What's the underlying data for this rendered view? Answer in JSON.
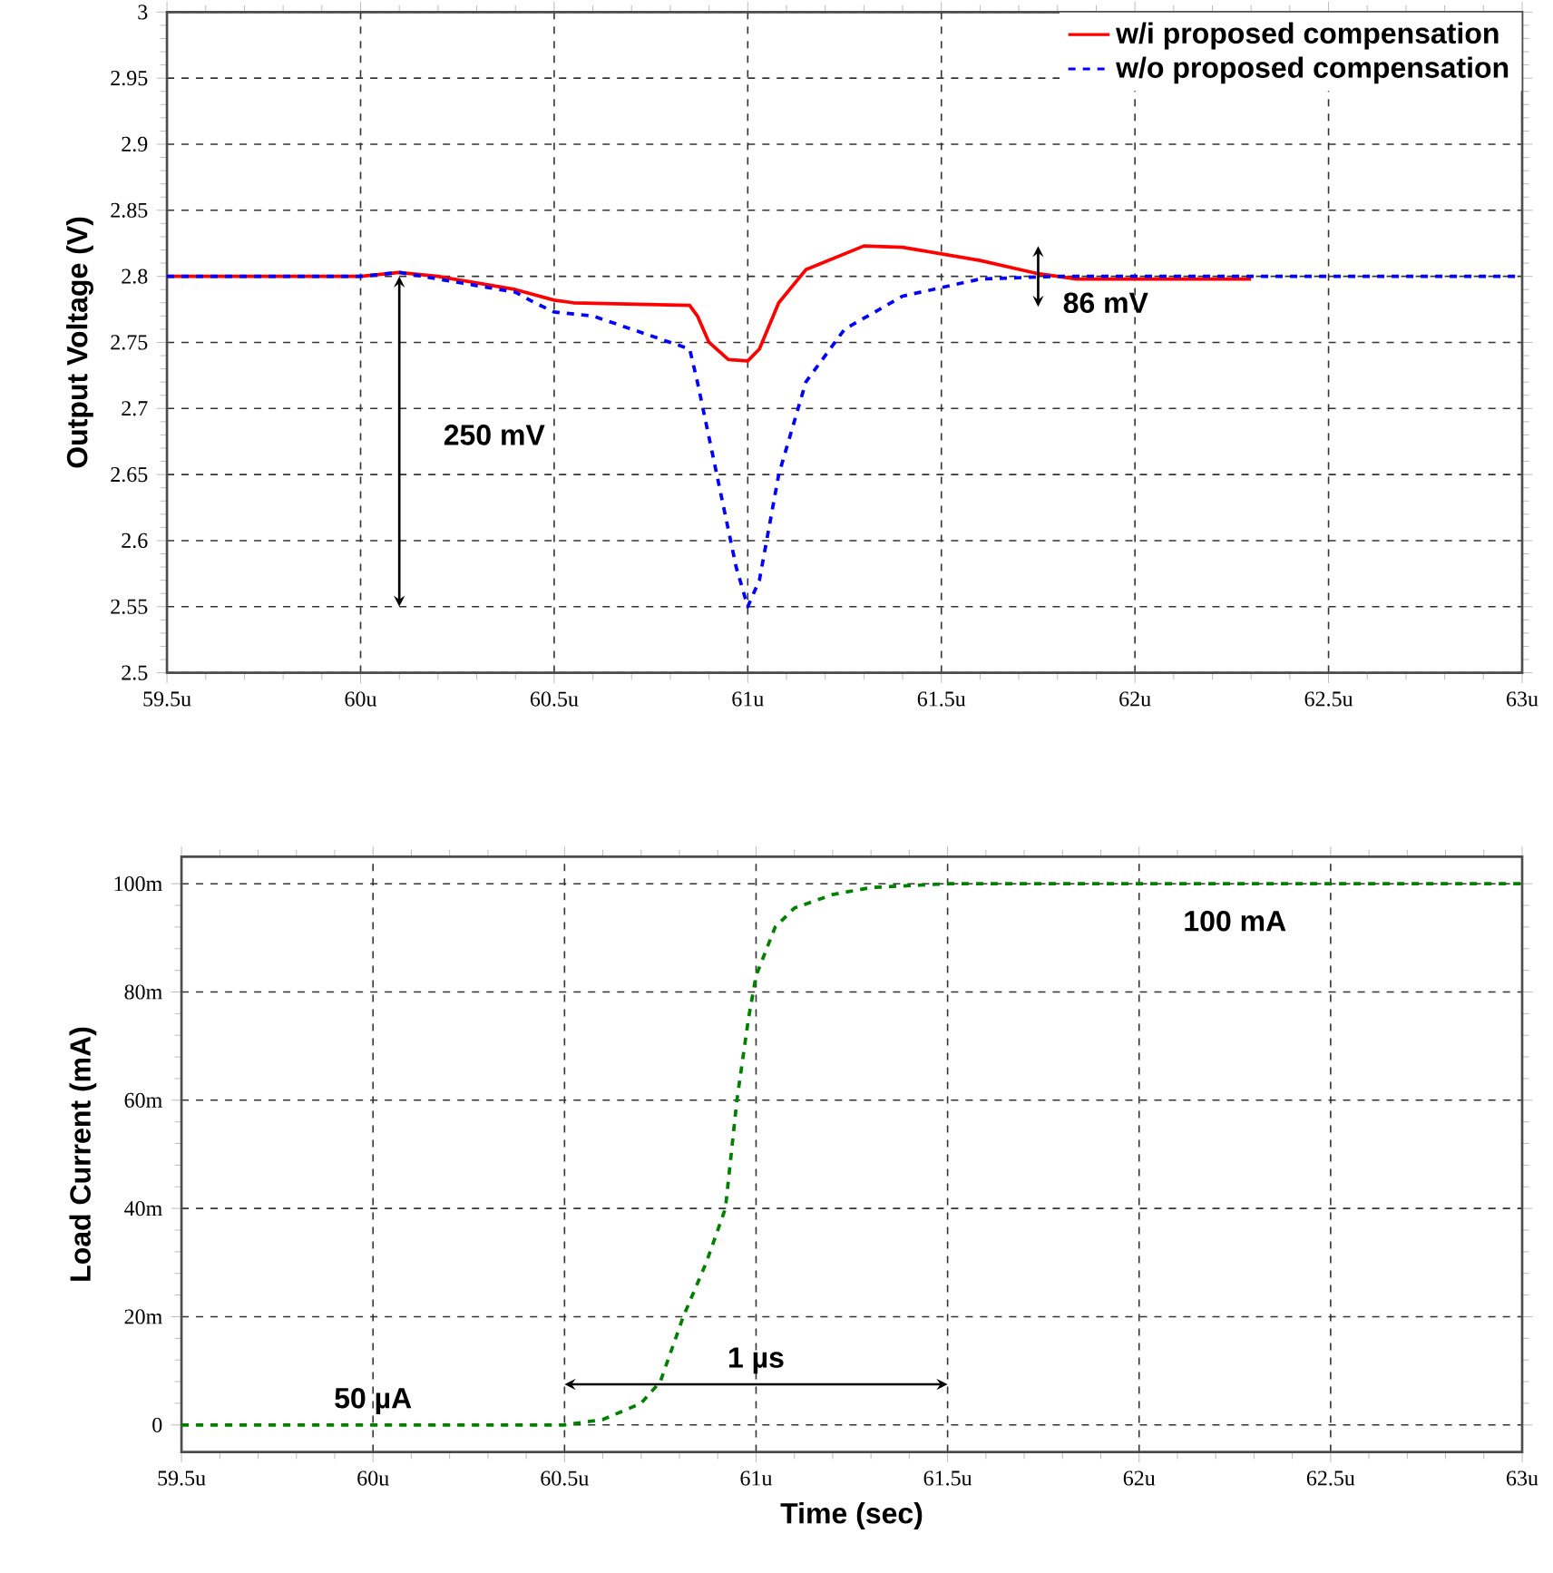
{
  "chart_data": [
    {
      "type": "line",
      "ylabel": "Output Voltage (V)",
      "xlim": [
        59.5,
        63
      ],
      "ylim": [
        2.5,
        3
      ],
      "xticks": [
        {
          "value": 59.5,
          "label": "59.5u"
        },
        {
          "value": 60,
          "label": "60u"
        },
        {
          "value": 60.5,
          "label": "60.5u"
        },
        {
          "value": 61,
          "label": "61u"
        },
        {
          "value": 61.5,
          "label": "61.5u"
        },
        {
          "value": 62,
          "label": "62u"
        },
        {
          "value": 62.5,
          "label": "62.5u"
        },
        {
          "value": 63,
          "label": "63u"
        }
      ],
      "yticks": [
        2.5,
        2.55,
        2.6,
        2.65,
        2.7,
        2.75,
        2.8,
        2.85,
        2.9,
        2.95,
        3
      ],
      "grid": true,
      "legend": "top right",
      "series": [
        {
          "name": "w/i proposed compensation",
          "color": "#ff0000",
          "line_style": "solid",
          "x": [
            59.5,
            60.0,
            60.1,
            60.2,
            60.4,
            60.5,
            60.55,
            60.85,
            60.87,
            60.9,
            60.95,
            61.0,
            61.03,
            61.08,
            61.15,
            61.3,
            61.4,
            61.6,
            61.75,
            61.85,
            62.3
          ],
          "values": [
            2.8,
            2.8,
            2.803,
            2.8,
            2.79,
            2.782,
            2.78,
            2.778,
            2.77,
            2.75,
            2.737,
            2.736,
            2.745,
            2.78,
            2.805,
            2.823,
            2.822,
            2.812,
            2.802,
            2.798,
            2.798
          ]
        },
        {
          "name": "w/o proposed compensation",
          "color": "#0000ff",
          "line_style": "dashed",
          "x": [
            59.5,
            60.0,
            60.1,
            60.4,
            60.45,
            60.5,
            60.6,
            60.85,
            60.87,
            60.92,
            60.97,
            61.0,
            61.03,
            61.08,
            61.15,
            61.25,
            61.4,
            61.6,
            61.8,
            63.0
          ],
          "values": [
            2.8,
            2.8,
            2.803,
            2.788,
            2.78,
            2.773,
            2.77,
            2.745,
            2.72,
            2.65,
            2.58,
            2.55,
            2.57,
            2.65,
            2.72,
            2.76,
            2.785,
            2.798,
            2.8,
            2.8
          ]
        }
      ],
      "annotations": [
        "250 mV",
        "86 mV"
      ]
    },
    {
      "type": "line",
      "xlabel": "Time (sec)",
      "ylabel": "Load Current (mA)",
      "xlim": [
        59.5,
        63
      ],
      "ylim": [
        -5,
        105
      ],
      "xticks": [
        {
          "value": 59.5,
          "label": "59.5u"
        },
        {
          "value": 60,
          "label": "60u"
        },
        {
          "value": 60.5,
          "label": "60.5u"
        },
        {
          "value": 61,
          "label": "61u"
        },
        {
          "value": 61.5,
          "label": "61.5u"
        },
        {
          "value": 62,
          "label": "62u"
        },
        {
          "value": 62.5,
          "label": "62.5u"
        },
        {
          "value": 63,
          "label": "63u"
        }
      ],
      "yticks": [
        0,
        {
          "value": 20,
          "label": "20m"
        },
        {
          "value": 40,
          "label": "40m"
        },
        {
          "value": 60,
          "label": "60m"
        },
        {
          "value": 80,
          "label": "80m"
        },
        {
          "value": 100,
          "label": "100m"
        }
      ],
      "grid": true,
      "series": [
        {
          "color": "#008000",
          "line_style": "dashed",
          "x": [
            59.5,
            60.5,
            60.6,
            60.7,
            60.75,
            60.81,
            60.87,
            60.92,
            60.95,
            60.98,
            61.0,
            61.05,
            61.1,
            61.2,
            61.3,
            61.5,
            63.0
          ],
          "values": [
            0,
            0,
            1,
            4,
            8,
            20,
            30,
            40,
            60,
            75,
            83,
            92,
            95.5,
            98,
            99.3,
            100,
            100
          ]
        }
      ],
      "annotations": [
        "1 µs",
        "50 µA",
        "100 mA"
      ]
    }
  ]
}
